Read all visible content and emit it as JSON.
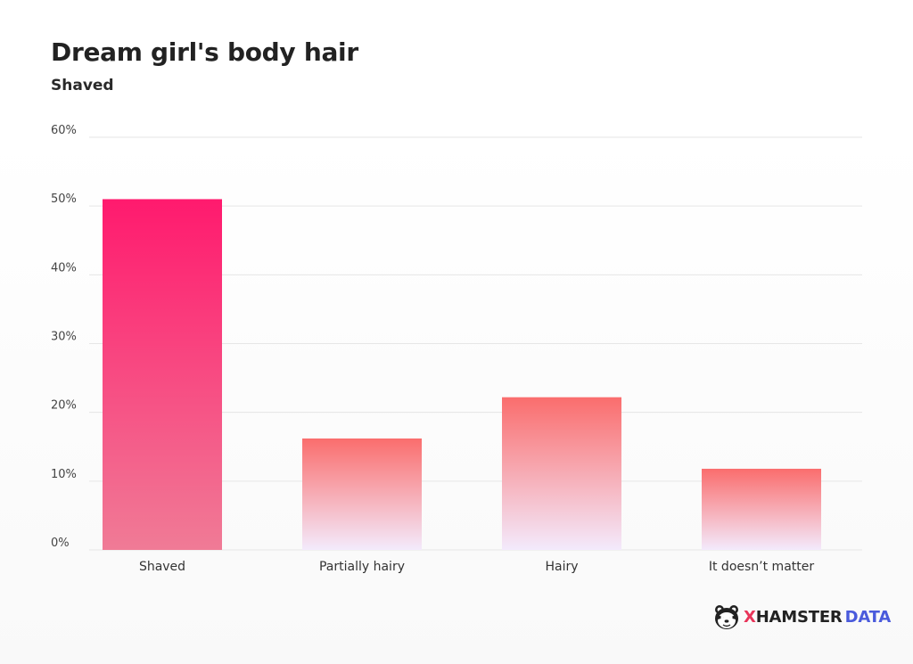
{
  "chart_data": {
    "type": "bar",
    "title": "Dream girl's body hair",
    "subtitle": "Shaved",
    "categories": [
      "Shaved",
      "Partially hairy",
      "Hairy",
      "It doesn’t matter"
    ],
    "values": [
      51,
      16.2,
      22.2,
      11.8
    ],
    "y_ticks": [
      "0%",
      "10%",
      "20%",
      "30%",
      "40%",
      "50%",
      "60%"
    ],
    "ylim": [
      0,
      60
    ],
    "xlabel": "",
    "ylabel": "",
    "grid": true,
    "legend": "none",
    "colors": {
      "bar_top": "#fa6d6d",
      "bar_bottom": "#f3eafc",
      "first_bar_top": "#ff1a6e",
      "first_bar_bottom": "#f07b96",
      "grid": "#e6e6e6",
      "axis_label": "#333333"
    }
  },
  "brand": {
    "x": "X",
    "hamster": "HAMSTER",
    "data": "DATA",
    "mascot_icon": "hamster-face-icon"
  }
}
